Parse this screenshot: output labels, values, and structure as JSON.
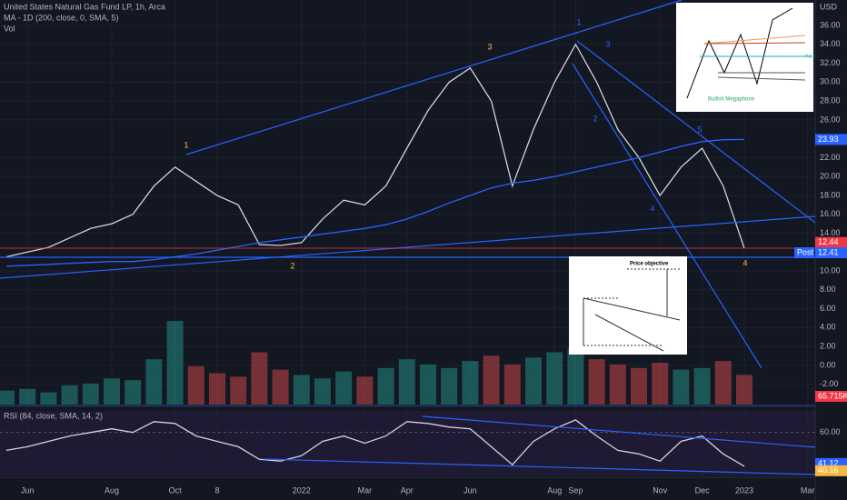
{
  "chart_data": [
    {
      "type": "line",
      "title": "United States Natural Gas Fund LP, 1h, Arca",
      "unit": "USD",
      "categories": [
        null,
        "Jun",
        null,
        null,
        null,
        "Aug",
        null,
        null,
        "Oct",
        null,
        "8",
        null,
        null,
        null,
        "2022",
        null,
        null,
        "Mar",
        null,
        "Apr",
        null,
        null,
        "Jun",
        null,
        null,
        null,
        "Aug",
        "Sep",
        null,
        null,
        null,
        "Nov",
        null,
        "Dec",
        null,
        "2023",
        null,
        null,
        "Mar"
      ],
      "series": [
        {
          "color": "#d1d4dc",
          "values": [
            11.5,
            12,
            12.5,
            13.5,
            14.5,
            15,
            16,
            19,
            21,
            19.5,
            18,
            17,
            12.8,
            12.7,
            13,
            15.5,
            17.5,
            17,
            19,
            23,
            27,
            30,
            31.5,
            28,
            19,
            25,
            30,
            34,
            30,
            25,
            22,
            18,
            21,
            23,
            19,
            12.41,
            null,
            null,
            null
          ]
        },
        {
          "name": "MA - 1D (200, close, 0, SMA, 5)",
          "color": "#2962ff",
          "values": [
            10.5,
            10.6,
            10.7,
            10.8,
            10.9,
            11,
            11,
            11.2,
            11.5,
            11.8,
            12.2,
            12.6,
            13,
            13.3,
            13.6,
            13.9,
            14.2,
            14.5,
            14.9,
            15.5,
            16.3,
            17.2,
            18,
            18.8,
            19.3,
            19.6,
            20,
            20.5,
            21,
            21.5,
            22,
            22.6,
            23.2,
            23.7,
            23.9,
            23.93,
            null,
            null,
            null
          ]
        }
      ],
      "ylim": [
        -4.15,
        38.7
      ],
      "yticks": [
        {
          "value": 36,
          "label": "36.00"
        },
        {
          "value": 34,
          "label": "34.00"
        },
        {
          "value": 32,
          "label": "32.00"
        },
        {
          "value": 30,
          "label": "30.00"
        },
        {
          "value": 28,
          "label": "28.00"
        },
        {
          "value": 26,
          "label": "26.00"
        },
        {
          "value": 22,
          "label": "22.00"
        },
        {
          "value": 20,
          "label": "20.00"
        },
        {
          "value": 18,
          "label": "18.00"
        },
        {
          "value": 16,
          "label": "16.00"
        },
        {
          "value": 14,
          "label": "14.00"
        },
        {
          "value": 10,
          "label": "10.00"
        },
        {
          "value": 8,
          "label": "8.00"
        },
        {
          "value": 6,
          "label": "6.00"
        },
        {
          "value": 4,
          "label": "4.00"
        },
        {
          "value": 2,
          "label": "2.00"
        },
        {
          "value": 0,
          "label": "0.00"
        },
        {
          "value": -2,
          "label": "-2.00"
        }
      ],
      "price_tags": [
        {
          "value": 23.93,
          "color": "#2962ff"
        },
        {
          "value": 12.44,
          "color": "#f23645"
        },
        {
          "value": 12.41,
          "color": "#2962ff",
          "label": "Post"
        }
      ],
      "annotations": [
        {
          "text": "1",
          "color": "#f5b942"
        },
        {
          "text": "2",
          "color": "#f5b942"
        },
        {
          "text": "3",
          "color": "#f5b942"
        },
        {
          "text": "1",
          "color": "#2962ff"
        },
        {
          "text": "3",
          "color": "#2962ff"
        },
        {
          "text": "2",
          "color": "#2962ff"
        },
        {
          "text": "5",
          "color": "#2962ff"
        },
        {
          "text": "4",
          "color": "#2962ff"
        },
        {
          "text": "4",
          "color": "#f5b942"
        }
      ],
      "insets": [
        "Bullish Megaphone",
        "Price objective",
        "Posi"
      ],
      "grid": true
    },
    {
      "type": "bar",
      "title": "Vol",
      "values": [
        80,
        90,
        70,
        110,
        120,
        150,
        140,
        260,
        480,
        220,
        180,
        160,
        300,
        200,
        170,
        150,
        190,
        160,
        210,
        260,
        230,
        210,
        250,
        280,
        230,
        270,
        300,
        320,
        260,
        230,
        210,
        240,
        200,
        210,
        250,
        170,
        null,
        null,
        null
      ],
      "ylim": [
        0,
        600
      ],
      "last_label": "65.715K",
      "up_color": "#26a69a",
      "down_color": "#ef5350"
    },
    {
      "type": "line",
      "title": "RSI (84, close, SMA, 14, 2)",
      "color": "#d1d4dc",
      "values": [
        50,
        52,
        55,
        58,
        60,
        62,
        60,
        66,
        65,
        58,
        55,
        52,
        45,
        44,
        47,
        55,
        58,
        54,
        58,
        66,
        65,
        63,
        62,
        52,
        42,
        55,
        62,
        67,
        58,
        50,
        48,
        44,
        55,
        58,
        48,
        41.12,
        null,
        null,
        null
      ],
      "ylim": [
        36,
        72
      ],
      "yticks": [
        {
          "value": 60,
          "label": "60.00"
        }
      ],
      "last": 41.12,
      "signal_last": 40.16,
      "signal_color": "#f5b942"
    }
  ]
}
